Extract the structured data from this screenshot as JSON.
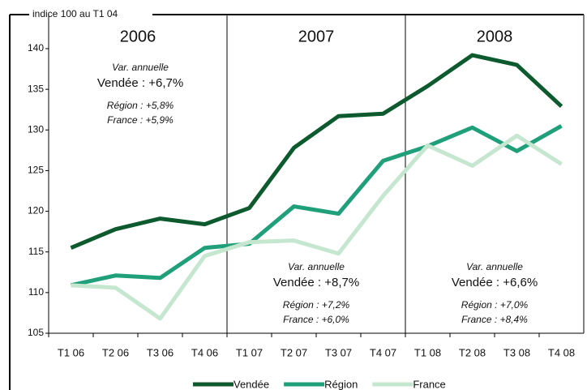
{
  "chart_data": {
    "type": "line",
    "title": "indice 100 au T1 04",
    "categories": [
      "T1 06",
      "T2 06",
      "T3 06",
      "T4 06",
      "T1 07",
      "T2 07",
      "T3 07",
      "T4 07",
      "T1 08",
      "T2 08",
      "T3 08",
      "T4 08"
    ],
    "series": [
      {
        "name": "Vendée",
        "color": "#0d5a2e",
        "values": [
          115.5,
          117.8,
          119.1,
          118.4,
          120.4,
          127.8,
          131.7,
          132.0,
          135.4,
          139.2,
          138.0,
          132.9
        ]
      },
      {
        "name": "Région",
        "color": "#1fa07a",
        "values": [
          110.9,
          112.1,
          111.8,
          115.5,
          116.0,
          120.6,
          119.7,
          126.2,
          128.0,
          130.3,
          127.4,
          130.5
        ]
      },
      {
        "name": "France",
        "color": "#c5e6cf",
        "values": [
          110.9,
          110.6,
          106.8,
          114.5,
          116.2,
          116.4,
          114.8,
          121.9,
          128.1,
          125.6,
          129.3,
          125.8
        ]
      }
    ],
    "ylim": [
      105,
      140
    ],
    "yticks": [
      105,
      110,
      115,
      120,
      125,
      130,
      135,
      140
    ],
    "periods": [
      {
        "year": "2006",
        "label": "Var. annuelle",
        "main": "Vendée : +6,7%",
        "lines": [
          "Région : +5,8%",
          "France : +5,9%"
        ]
      },
      {
        "year": "2007",
        "label": "Var. annuelle",
        "main": "Vendée : +8,7%",
        "lines": [
          "Région : +7,2%",
          "France : +6,0%"
        ]
      },
      {
        "year": "2008",
        "label": "Var. annuelle",
        "main": "Vendée : +6,6%",
        "lines": [
          "Région : +7,0%",
          "France : +8,4%"
        ]
      }
    ],
    "legend": "bottom"
  }
}
